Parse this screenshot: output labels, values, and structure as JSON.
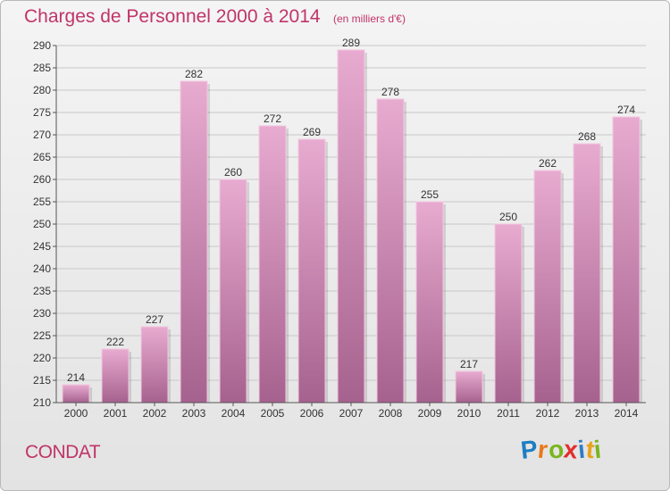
{
  "title": "Charges de Personnel 2000 à 2014",
  "subtitle": "(en milliers d'€)",
  "commune": "CONDAT",
  "logo": {
    "letters": [
      "P",
      "r",
      "o",
      "x",
      "i",
      "t",
      "i"
    ],
    "colors": [
      "#1d7ec4",
      "#e8791a",
      "#7ab51d",
      "#e42d2d",
      "#2e7dc3",
      "#e8a31b",
      "#7ab51d"
    ]
  },
  "colors": {
    "accent": "#c03468",
    "bar_light": "#e8abd0",
    "bar_dark": "#a6628e",
    "grid": "#c8c8c8"
  },
  "chart_data": {
    "type": "bar",
    "title": "Charges de Personnel 2000 à 2014",
    "subtitle": "(en milliers d'€)",
    "categories": [
      "2000",
      "2001",
      "2002",
      "2003",
      "2004",
      "2005",
      "2006",
      "2007",
      "2008",
      "2009",
      "2010",
      "2011",
      "2012",
      "2013",
      "2014"
    ],
    "values": [
      214,
      222,
      227,
      282,
      260,
      272,
      269,
      289,
      278,
      255,
      217,
      250,
      262,
      268,
      274
    ],
    "ylim": [
      210,
      290
    ],
    "ytick_step": 5,
    "grid": true,
    "xlabel": "",
    "ylabel": ""
  }
}
